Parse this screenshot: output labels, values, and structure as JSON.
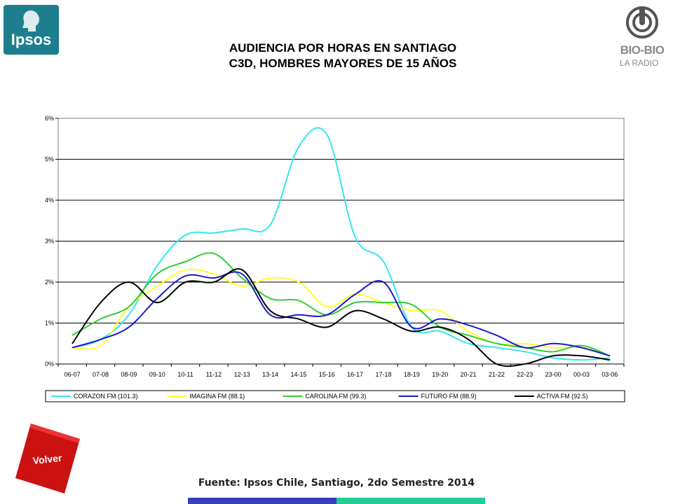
{
  "logos": {
    "ipsos": {
      "text": "Ipsos",
      "color": "#1d7f8e"
    },
    "biobio": {
      "name": "BIO-BIO",
      "sub": "LA RADIO",
      "color": "#8a8a8a"
    }
  },
  "header": {
    "title_line1": "AUDIENCIA POR HORAS EN SANTIAGO",
    "title_line2": "C3D, HOMBRES MAYORES DE 15 AÑOS"
  },
  "chart_data": {
    "type": "line",
    "categories": [
      "06-07",
      "07-08",
      "08-09",
      "09-10",
      "10-11",
      "11-12",
      "12-13",
      "13-14",
      "14-15",
      "15-16",
      "16-17",
      "17-18",
      "18-19",
      "19-20",
      "20-21",
      "21-22",
      "22-23",
      "23-00",
      "00-03",
      "03-06"
    ],
    "ylim": [
      0,
      6
    ],
    "yticks": [
      "0%",
      "1%",
      "2%",
      "3%",
      "4%",
      "5%",
      "6%"
    ],
    "grid": true,
    "legend_position": "bottom",
    "series": [
      {
        "name": "CORAZON FM (101.3)",
        "color": "#33e6f0",
        "values": [
          0.4,
          0.6,
          1.2,
          2.4,
          3.15,
          3.2,
          3.3,
          3.4,
          5.3,
          5.6,
          3.1,
          2.5,
          0.9,
          0.8,
          0.5,
          0.4,
          0.3,
          0.15,
          0.1,
          0.15
        ]
      },
      {
        "name": "IMAGINA FM (88.1)",
        "color": "#ffff2e",
        "values": [
          0.4,
          0.45,
          1.4,
          1.9,
          2.3,
          2.2,
          1.9,
          2.1,
          2.0,
          1.4,
          1.7,
          1.5,
          1.3,
          1.3,
          0.8,
          0.5,
          0.5,
          0.4,
          0.4,
          0.2
        ]
      },
      {
        "name": "CAROLINA FM (99.3)",
        "color": "#33cc33",
        "values": [
          0.7,
          1.1,
          1.4,
          2.2,
          2.5,
          2.7,
          2.1,
          1.6,
          1.55,
          1.2,
          1.5,
          1.5,
          1.45,
          0.9,
          0.7,
          0.5,
          0.4,
          0.3,
          0.45,
          0.2
        ]
      },
      {
        "name": "FUTURO FM (88.9)",
        "color": "#1a1acc",
        "values": [
          0.4,
          0.6,
          0.9,
          1.6,
          2.15,
          2.1,
          2.2,
          1.2,
          1.2,
          1.2,
          1.7,
          2.0,
          0.9,
          1.1,
          0.95,
          0.7,
          0.4,
          0.5,
          0.4,
          0.2
        ]
      },
      {
        "name": "ACTIVA FM (92.5)",
        "color": "#000000",
        "values": [
          0.5,
          1.5,
          2.0,
          1.5,
          2.0,
          2.0,
          2.3,
          1.3,
          1.1,
          0.9,
          1.3,
          1.1,
          0.8,
          0.9,
          0.6,
          0.0,
          0.0,
          0.2,
          0.2,
          0.1
        ]
      }
    ]
  },
  "footer": {
    "volver_label": "Volver",
    "source": "Fuente: Ipsos Chile, Santiago, 2do Semestre 2014"
  }
}
